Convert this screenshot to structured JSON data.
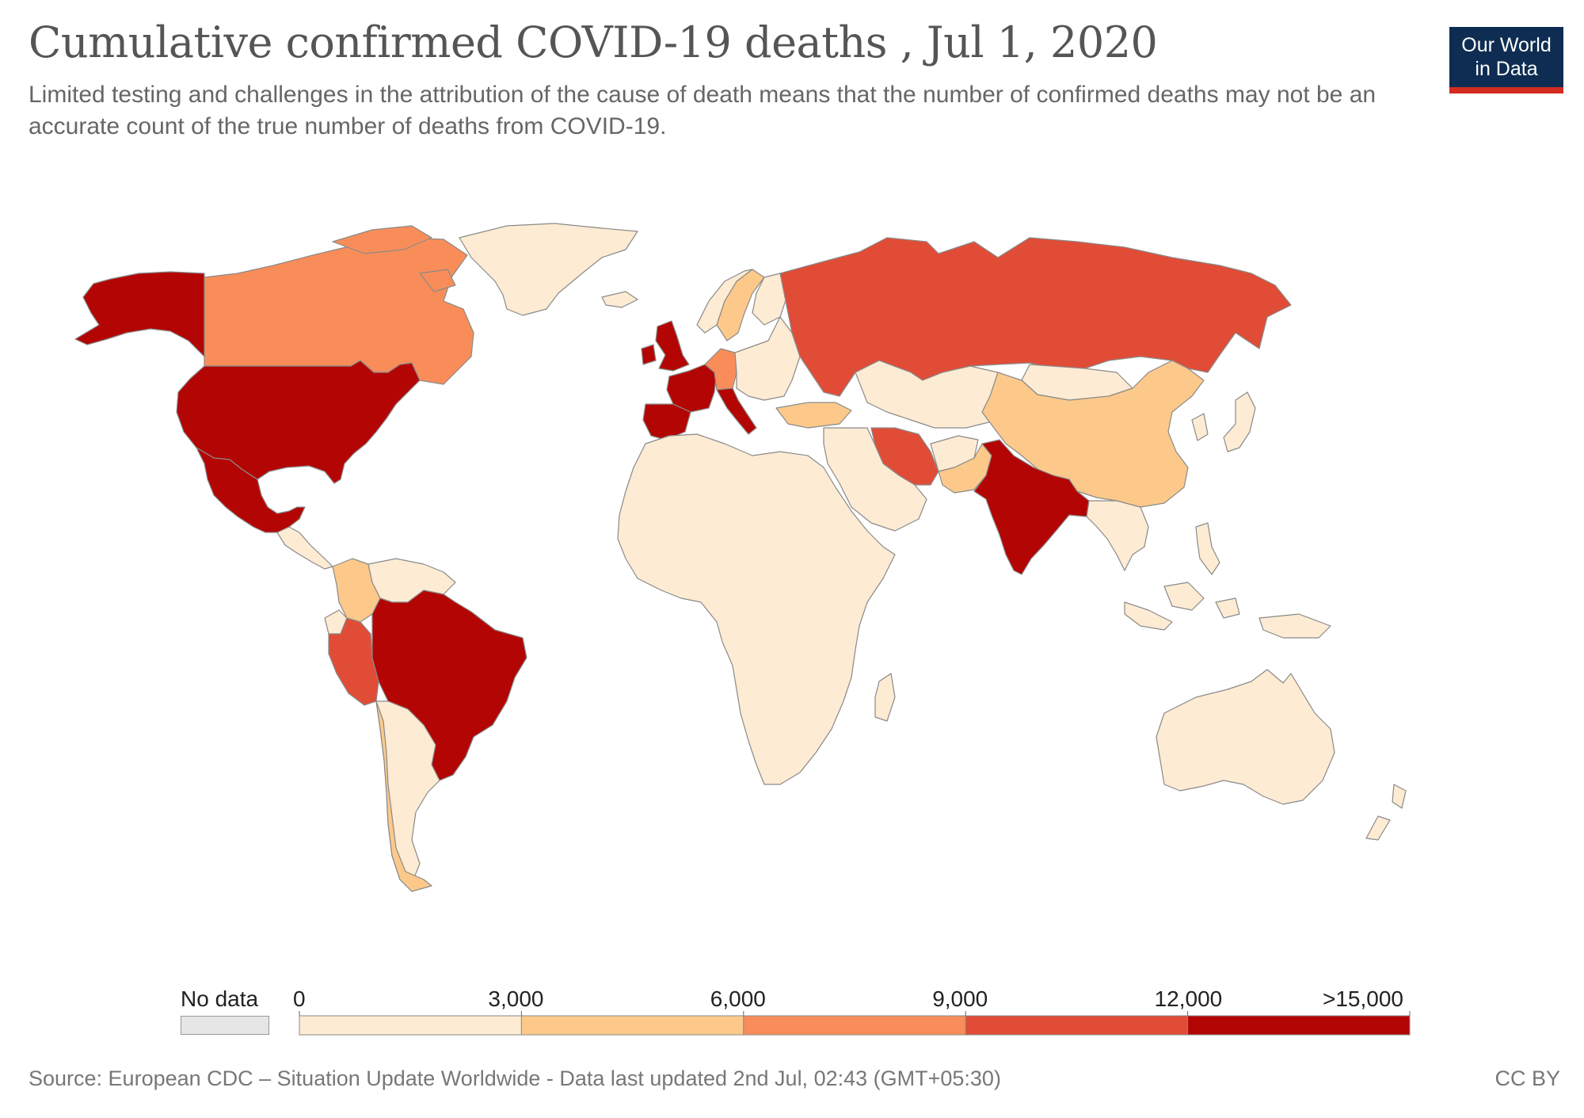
{
  "title": "Cumulative confirmed COVID-19 deaths , Jul 1, 2020",
  "subtitle": "Limited testing and challenges in the attribution of the cause of death means that the number of confirmed deaths may not be an accurate count of the true number of deaths from COVID-19.",
  "logo": {
    "line1": "Our World",
    "line2": "in Data",
    "background": "#0f2d52",
    "accent": "#d42b21"
  },
  "legend": {
    "no_data_label": "No data",
    "no_data_color": "#e6e6e6",
    "ticks": [
      "0",
      "3,000",
      "6,000",
      "9,000",
      "12,000",
      ">15,000"
    ],
    "bins": [
      {
        "range": "0-3,000",
        "color": "#fdebd3"
      },
      {
        "range": "3,000-6,000",
        "color": "#fcc98a"
      },
      {
        "range": "6,000-9,000",
        "color": "#f98d59"
      },
      {
        "range": "9,000-12,000",
        "color": "#e14c36"
      },
      {
        "range": ">12,000",
        "color": "#b40505"
      }
    ]
  },
  "regions": {
    "usa": "#b40505",
    "canada": "#f98d59",
    "alaska": "#b40505",
    "greenland": "#fdebd3",
    "mexico": "#b40505",
    "brazil": "#b40505",
    "peru": "#e14c36",
    "colombia": "#fcc98a",
    "chile": "#fcc98a",
    "south_america_rest": "#fdebd3",
    "uk": "#b40505",
    "france": "#b40505",
    "spain": "#b40505",
    "italy": "#b40505",
    "germany": "#f98d59",
    "sweden": "#fcc98a",
    "turkey": "#fcc98a",
    "iran": "#e14c36",
    "india": "#b40505",
    "russia": "#e14c36",
    "china": "#fcc98a",
    "pakistan": "#fcc98a",
    "africa": "#fdebd3",
    "australia": "#fdebd3"
  },
  "source": "Source: European CDC – Situation Update Worldwide - Data last updated 2nd Jul, 02:43 (GMT+05:30)",
  "license": "CC BY"
}
